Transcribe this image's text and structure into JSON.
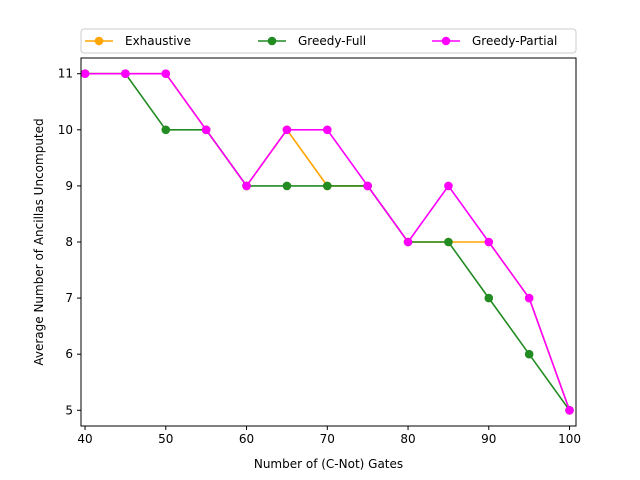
{
  "chart_data": {
    "type": "line",
    "title": "",
    "xlabel": "Number of (C-Not) Gates",
    "ylabel": "Average Number of Ancillas Uncomputed",
    "xlim": [
      39.5,
      100.8
    ],
    "ylim": [
      4.72,
      11.28
    ],
    "xticks": [
      40,
      50,
      60,
      70,
      80,
      90,
      100
    ],
    "yticks": [
      5,
      6,
      7,
      8,
      9,
      10,
      11
    ],
    "grid": false,
    "legend_position": "top",
    "x": [
      40,
      45,
      50,
      55,
      60,
      65,
      70,
      75,
      80,
      85,
      90,
      95,
      100
    ],
    "series": [
      {
        "name": "Exhaustive",
        "color": "#ffa500",
        "values": [
          11,
          11,
          11,
          10,
          9,
          10,
          9,
          9,
          8,
          8,
          8,
          7,
          5
        ]
      },
      {
        "name": "Greedy-Full",
        "color": "#228b22",
        "values": [
          11,
          11,
          10,
          10,
          9,
          9,
          9,
          9,
          8,
          8,
          7,
          6,
          5
        ]
      },
      {
        "name": "Greedy-Partial",
        "color": "#ff00ff",
        "values": [
          11,
          11,
          11,
          10,
          9,
          10,
          10,
          9,
          8,
          9,
          8,
          7,
          5
        ]
      }
    ]
  }
}
